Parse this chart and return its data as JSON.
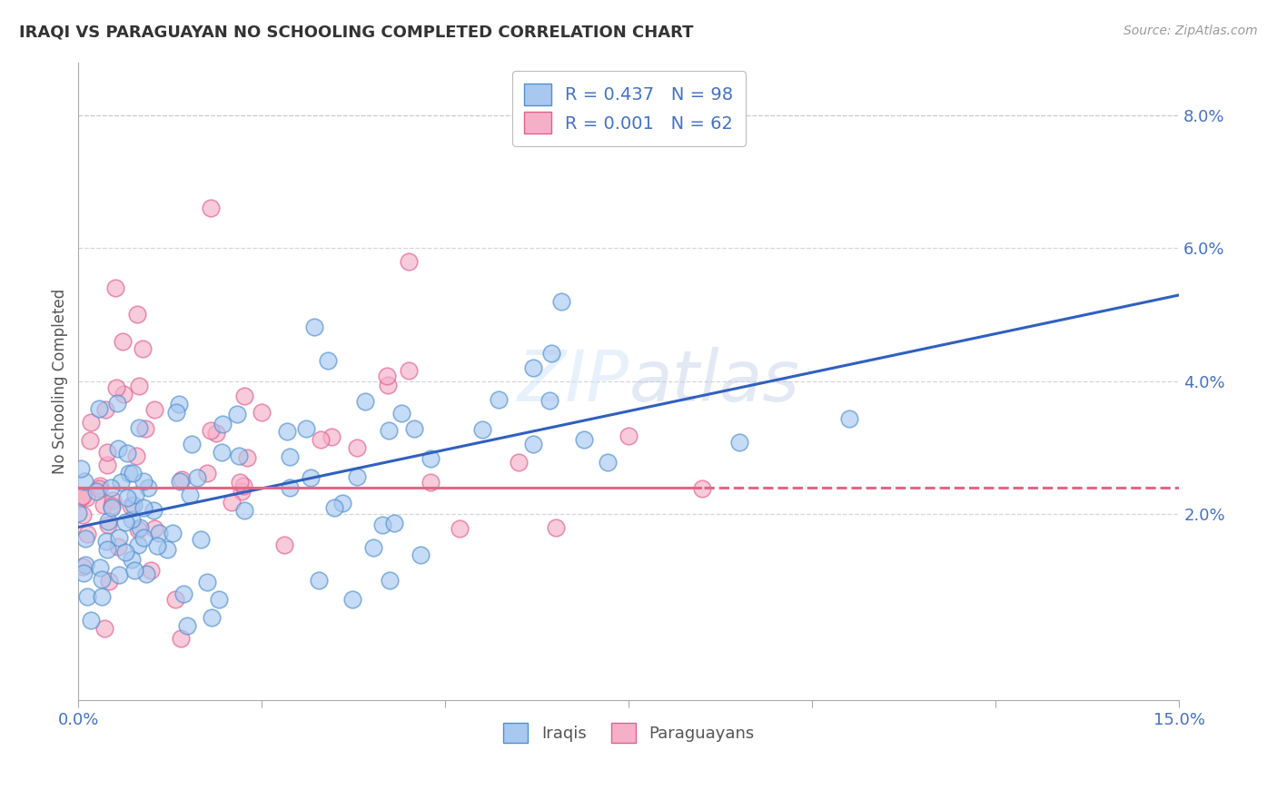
{
  "title": "IRAQI VS PARAGUAYAN NO SCHOOLING COMPLETED CORRELATION CHART",
  "source": "Source: ZipAtlas.com",
  "ylabel": "No Schooling Completed",
  "ylabel_right_ticks": [
    "2.0%",
    "4.0%",
    "6.0%",
    "8.0%"
  ],
  "ylabel_right_tick_vals": [
    0.02,
    0.04,
    0.06,
    0.08
  ],
  "xlim": [
    0.0,
    0.15
  ],
  "ylim": [
    -0.008,
    0.088
  ],
  "iraqi_R": "0.437",
  "iraqi_N": "98",
  "paraguayan_R": "0.001",
  "paraguayan_N": "62",
  "iraqi_color": "#A8C8F0",
  "paraguayan_color": "#F5B0C8",
  "iraqi_edge_color": "#5090D0",
  "paraguayan_edge_color": "#E06090",
  "iraqi_line_color": "#3060C0",
  "paraguayan_line_color": "#E06888",
  "watermark_color": "#D0E4F8",
  "legend_label_iraqi": "Iraqis",
  "legend_label_paraguayan": "Paraguayans",
  "background_color": "#ffffff",
  "grid_color": "#cccccc",
  "title_color": "#333333",
  "axis_tick_color": "#4472c4",
  "legend_text_color": "#4472c4",
  "iraqi_line_start_y": 0.018,
  "iraqi_line_slope": 0.233,
  "paraguayan_line_y": 0.024,
  "x_tick_positions": [
    0.0,
    0.025,
    0.05,
    0.075,
    0.1,
    0.125,
    0.15
  ]
}
